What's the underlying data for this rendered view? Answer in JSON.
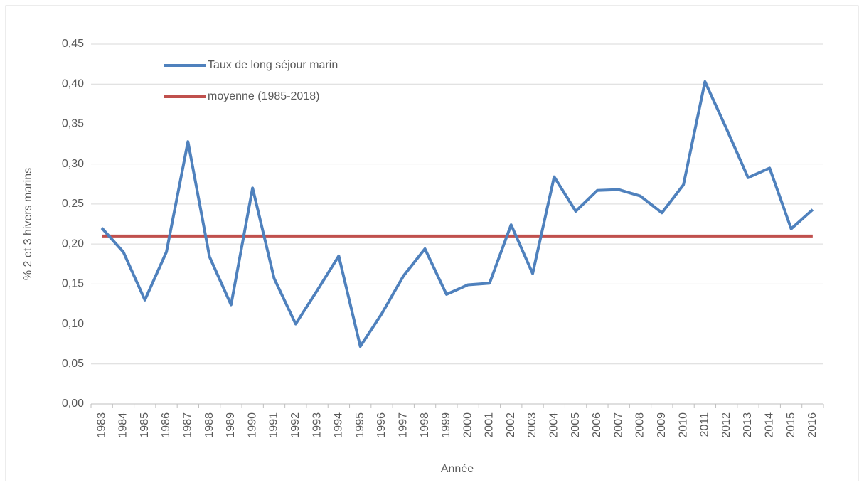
{
  "chart_data": {
    "type": "line",
    "y_label": "% 2 et 3 hivers marins",
    "x_label": "Année",
    "categories": [
      "1983",
      "1984",
      "1985",
      "1986",
      "1987",
      "1988",
      "1989",
      "1990",
      "1991",
      "1992",
      "1993",
      "1994",
      "1995",
      "1996",
      "1997",
      "1998",
      "1999",
      "2000",
      "2001",
      "2002",
      "2003",
      "2004",
      "2005",
      "2006",
      "2007",
      "2008",
      "2009",
      "2010",
      "2011",
      "2012",
      "2013",
      "2014",
      "2015",
      "2016"
    ],
    "series": [
      {
        "name": "Taux de long séjour marin",
        "color": "#4f81bd",
        "values": [
          0.22,
          0.19,
          0.13,
          0.19,
          0.328,
          0.184,
          0.124,
          0.27,
          0.157,
          0.1,
          0.142,
          0.185,
          0.072,
          0.113,
          0.16,
          0.194,
          0.137,
          0.149,
          0.151,
          0.224,
          0.163,
          0.284,
          0.241,
          0.267,
          0.268,
          0.26,
          0.239,
          0.274,
          0.403,
          0.344,
          0.283,
          0.295,
          0.219,
          0.243
        ]
      },
      {
        "name": "moyenne (1985-2018)",
        "color": "#c0504d",
        "values": [
          0.21,
          0.21,
          0.21,
          0.21,
          0.21,
          0.21,
          0.21,
          0.21,
          0.21,
          0.21,
          0.21,
          0.21,
          0.21,
          0.21,
          0.21,
          0.21,
          0.21,
          0.21,
          0.21,
          0.21,
          0.21,
          0.21,
          0.21,
          0.21,
          0.21,
          0.21,
          0.21,
          0.21,
          0.21,
          0.21,
          0.21,
          0.21,
          0.21,
          0.21
        ]
      }
    ],
    "ylim": [
      0,
      0.45
    ],
    "yticks": [
      {
        "value": 0,
        "label": "0,00"
      },
      {
        "value": 0.05,
        "label": "0,05"
      },
      {
        "value": 0.1,
        "label": "0,10"
      },
      {
        "value": 0.15,
        "label": "0,15"
      },
      {
        "value": 0.2,
        "label": "0,20"
      },
      {
        "value": 0.25,
        "label": "0,25"
      },
      {
        "value": 0.3,
        "label": "0,30"
      },
      {
        "value": 0.35,
        "label": "0,35"
      },
      {
        "value": 0.4,
        "label": "0,40"
      },
      {
        "value": 0.45,
        "label": "0,45"
      }
    ],
    "grid": true,
    "legend": "top-left"
  }
}
